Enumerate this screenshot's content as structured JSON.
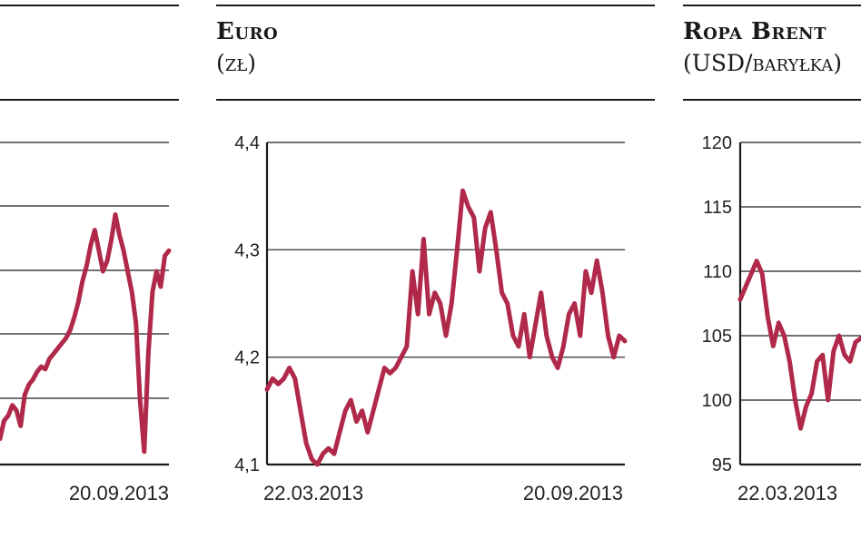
{
  "colors": {
    "line": "#b0294a",
    "grid": "#444444",
    "text": "#1a1a1a"
  },
  "chart_data": [
    {
      "type": "line",
      "title": "",
      "unit": "",
      "ylim": [
        null,
        null
      ],
      "yticks": [],
      "x_labels": [
        "20.09.2013"
      ],
      "grid": true,
      "series": [
        {
          "values": [
            4.05,
            4.12,
            4.14,
            4.18,
            4.16,
            4.1,
            4.22,
            4.26,
            4.28,
            4.31,
            4.33,
            4.32,
            4.36,
            4.38,
            4.4,
            4.42,
            4.44,
            4.47,
            4.52,
            4.58,
            4.66,
            4.72,
            4.8,
            4.86,
            4.78,
            4.7,
            4.74,
            4.82,
            4.92,
            4.84,
            4.78,
            4.7,
            4.62,
            4.5,
            4.2,
            4.0,
            4.38,
            4.62,
            4.7,
            4.64,
            4.76,
            4.78
          ]
        }
      ]
    },
    {
      "type": "line",
      "title": "Euro",
      "unit": "(zł)",
      "ylim": [
        4.1,
        4.4
      ],
      "yticks": [
        "4,4",
        "4,3",
        "4,2",
        "4,1"
      ],
      "x_labels": [
        "22.03.2013",
        "20.09.2013"
      ],
      "grid": true,
      "series": [
        {
          "values": [
            4.17,
            4.18,
            4.175,
            4.18,
            4.19,
            4.18,
            4.15,
            4.12,
            4.105,
            4.1,
            4.11,
            4.115,
            4.11,
            4.13,
            4.15,
            4.16,
            4.14,
            4.15,
            4.13,
            4.15,
            4.17,
            4.19,
            4.185,
            4.19,
            4.2,
            4.21,
            4.28,
            4.24,
            4.31,
            4.24,
            4.26,
            4.25,
            4.22,
            4.25,
            4.3,
            4.355,
            4.34,
            4.33,
            4.28,
            4.32,
            4.335,
            4.3,
            4.26,
            4.25,
            4.22,
            4.21,
            4.24,
            4.2,
            4.23,
            4.26,
            4.22,
            4.2,
            4.19,
            4.21,
            4.24,
            4.25,
            4.22,
            4.28,
            4.26,
            4.29,
            4.26,
            4.22,
            4.2,
            4.22,
            4.215
          ]
        }
      ]
    },
    {
      "type": "line",
      "title": "Ropa Brent",
      "unit": "(USD/baryłka)",
      "ylim": [
        95,
        120
      ],
      "yticks": [
        "120",
        "115",
        "110",
        "105",
        "100",
        "95"
      ],
      "x_labels": [
        "22.03.2013"
      ],
      "grid": true,
      "series": [
        {
          "values": [
            107.8,
            108.8,
            109.8,
            110.8,
            109.8,
            106.5,
            104.2,
            106.0,
            105.0,
            103.0,
            100.0,
            97.8,
            99.5,
            100.5,
            103.0,
            103.5,
            100.0,
            103.8,
            105.0,
            103.5,
            103.0,
            104.5,
            104.8
          ]
        }
      ]
    }
  ]
}
